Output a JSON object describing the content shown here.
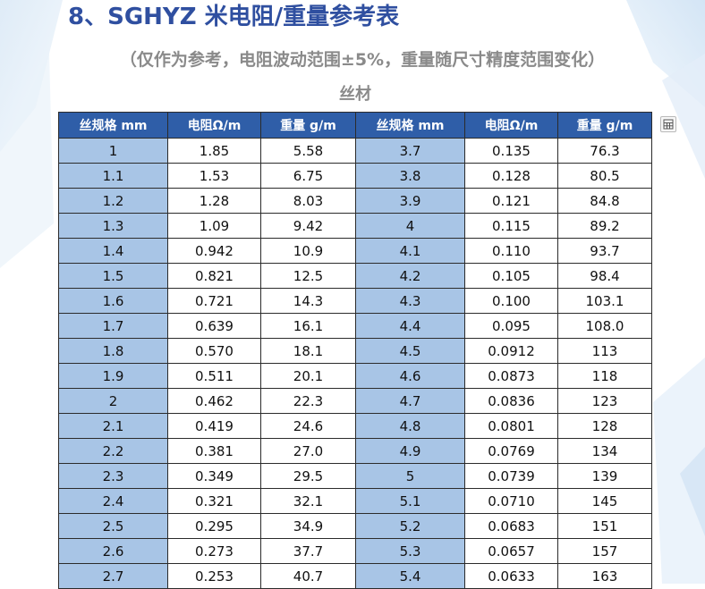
{
  "heading": {
    "title": "8、SGHYZ 米电阻/重量参考表",
    "subtitle": "（仅作为参考，电阻波动范围±5%，重量随尺寸精度范围变化）",
    "section": "丝材"
  },
  "table": {
    "headers": [
      "丝规格 mm",
      "电阻Ω/m",
      "重量 g/m",
      "丝规格 mm",
      "电阻Ω/m",
      "重量 g/m"
    ],
    "rows": [
      [
        "1",
        "1.85",
        "5.58",
        "3.7",
        "0.135",
        "76.3"
      ],
      [
        "1.1",
        "1.53",
        "6.75",
        "3.8",
        "0.128",
        "80.5"
      ],
      [
        "1.2",
        "1.28",
        "8.03",
        "3.9",
        "0.121",
        "84.8"
      ],
      [
        "1.3",
        "1.09",
        "9.42",
        "4",
        "0.115",
        "89.2"
      ],
      [
        "1.4",
        "0.942",
        "10.9",
        "4.1",
        "0.110",
        "93.7"
      ],
      [
        "1.5",
        "0.821",
        "12.5",
        "4.2",
        "0.105",
        "98.4"
      ],
      [
        "1.6",
        "0.721",
        "14.3",
        "4.3",
        "0.100",
        "103.1"
      ],
      [
        "1.7",
        "0.639",
        "16.1",
        "4.4",
        "0.095",
        "108.0"
      ],
      [
        "1.8",
        "0.570",
        "18.1",
        "4.5",
        "0.0912",
        "113"
      ],
      [
        "1.9",
        "0.511",
        "20.1",
        "4.6",
        "0.0873",
        "118"
      ],
      [
        "2",
        "0.462",
        "22.3",
        "4.7",
        "0.0836",
        "123"
      ],
      [
        "2.1",
        "0.419",
        "24.6",
        "4.8",
        "0.0801",
        "128"
      ],
      [
        "2.2",
        "0.381",
        "27.0",
        "4.9",
        "0.0769",
        "134"
      ],
      [
        "2.3",
        "0.349",
        "29.5",
        "5",
        "0.0739",
        "139"
      ],
      [
        "2.4",
        "0.321",
        "32.1",
        "5.1",
        "0.0710",
        "145"
      ],
      [
        "2.5",
        "0.295",
        "34.9",
        "5.2",
        "0.0683",
        "151"
      ],
      [
        "2.6",
        "0.273",
        "37.7",
        "5.3",
        "0.0657",
        "157"
      ],
      [
        "2.7",
        "0.253",
        "40.7",
        "5.4",
        "0.0633",
        "163"
      ]
    ]
  },
  "colors": {
    "title": "#2f4fa0",
    "header_bg": "#2f5ea8",
    "cell_blue": "#a8c5e6"
  },
  "icons": {
    "corner": "table-select-icon"
  }
}
